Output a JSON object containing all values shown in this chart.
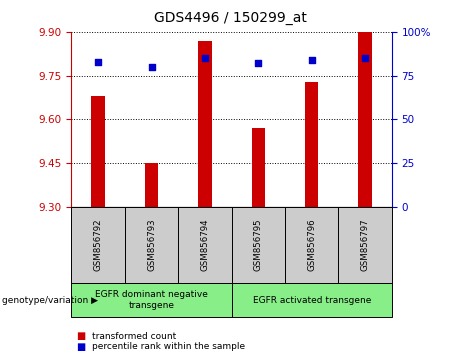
{
  "title": "GDS4496 / 150299_at",
  "samples": [
    "GSM856792",
    "GSM856793",
    "GSM856794",
    "GSM856795",
    "GSM856796",
    "GSM856797"
  ],
  "transformed_counts": [
    9.68,
    9.45,
    9.87,
    9.57,
    9.73,
    9.9
  ],
  "percentile_ranks": [
    83,
    80,
    85,
    82,
    84,
    85
  ],
  "ylim_left": [
    9.3,
    9.9
  ],
  "ylim_right": [
    0,
    100
  ],
  "yticks_left": [
    9.3,
    9.45,
    9.6,
    9.75,
    9.9
  ],
  "yticks_right": [
    0,
    25,
    50,
    75,
    100
  ],
  "ytick_labels_right": [
    "0",
    "25",
    "50",
    "75",
    "100%"
  ],
  "bar_color": "#cc0000",
  "dot_color": "#0000cc",
  "group1_label": "EGFR dominant negative\ntransgene",
  "group2_label": "EGFR activated transgene",
  "group_bg_color": "#88ee88",
  "sample_bg_color": "#cccccc",
  "legend_red_label": "transformed count",
  "legend_blue_label": "percentile rank within the sample",
  "xlabel_text": "genotype/variation"
}
